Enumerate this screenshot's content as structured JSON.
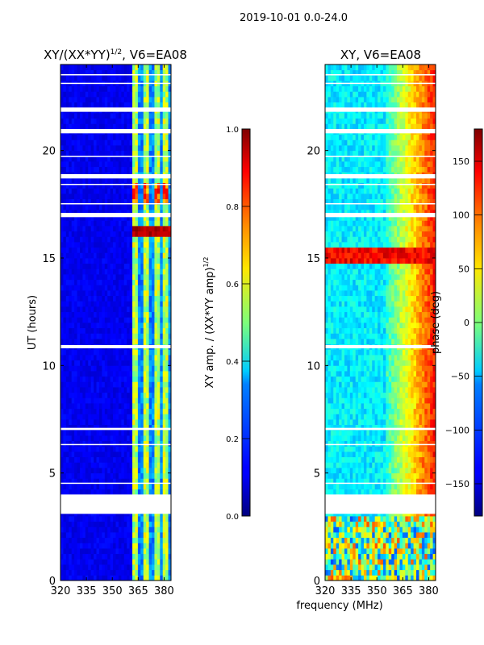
{
  "suptitle": "2019-10-01 0.0-24.0",
  "shared_xlabel": "frequency (MHz)",
  "chart_data": [
    {
      "type": "heatmap",
      "title_main": "XY/(XX*YY)",
      "title_sup": "1/2",
      "title_rest": ", V6=EA08",
      "ylabel": "UT (hours)",
      "x_ticks": [
        "320",
        "335",
        "350",
        "365",
        "380"
      ],
      "xlim": [
        320,
        384
      ],
      "y_ticks": [
        "0",
        "5",
        "10",
        "15",
        "20"
      ],
      "ylim": [
        0,
        24
      ],
      "colorbar": {
        "label_main": "XY amp. / (XX*YY amp)",
        "label_sup": "1/2",
        "range": [
          0.0,
          1.0
        ],
        "ticks": [
          "0.0",
          "0.2",
          "0.4",
          "0.6",
          "0.8",
          "1.0"
        ],
        "colormap": "jet"
      },
      "gap_hours": [
        [
          3.1,
          4.0
        ],
        [
          4.5,
          4.55
        ],
        [
          6.3,
          6.35
        ],
        [
          7.0,
          7.1
        ],
        [
          10.8,
          10.95
        ],
        [
          16.9,
          17.1
        ],
        [
          17.5,
          17.55
        ],
        [
          18.4,
          18.45
        ],
        [
          18.7,
          18.9
        ],
        [
          19.7,
          19.75
        ],
        [
          20.8,
          21.0
        ],
        [
          21.8,
          22.0
        ],
        [
          23.1,
          23.15
        ],
        [
          23.5,
          23.55
        ]
      ],
      "summary": "Low normalized amplitude (about 0.1) below 362 MHz; elevated values (0.3-0.7) in 362-382 MHz with bright spots near 16.2 h and 18 h"
    },
    {
      "type": "heatmap",
      "title_main": "XY, V6=EA08",
      "x_ticks": [
        "320",
        "335",
        "350",
        "365",
        "380"
      ],
      "xlim": [
        320,
        384
      ],
      "y_ticks": [
        "0",
        "5",
        "10",
        "15",
        "20"
      ],
      "ylim": [
        0,
        24
      ],
      "colorbar": {
        "label": "phase (deg)",
        "range": [
          -180,
          180
        ],
        "ticks": [
          "150",
          "100",
          "50",
          "0",
          "−50",
          "−100",
          "−150"
        ],
        "colormap": "jet"
      },
      "gap_hours": [
        [
          3.1,
          4.0
        ],
        [
          4.5,
          4.55
        ],
        [
          6.3,
          6.35
        ],
        [
          7.0,
          7.1
        ],
        [
          10.8,
          10.95
        ],
        [
          16.9,
          17.1
        ],
        [
          17.5,
          17.55
        ],
        [
          18.4,
          18.45
        ],
        [
          18.7,
          18.9
        ],
        [
          19.7,
          19.75
        ],
        [
          20.8,
          21.0
        ],
        [
          21.8,
          22.0
        ],
        [
          23.1,
          23.15
        ],
        [
          23.5,
          23.55
        ]
      ],
      "summary": "Phase near -100 deg below 355 MHz for most hours; rising to about +150 deg at higher frequencies; strong red band near 15 h and mixed phase below 3 h"
    }
  ]
}
